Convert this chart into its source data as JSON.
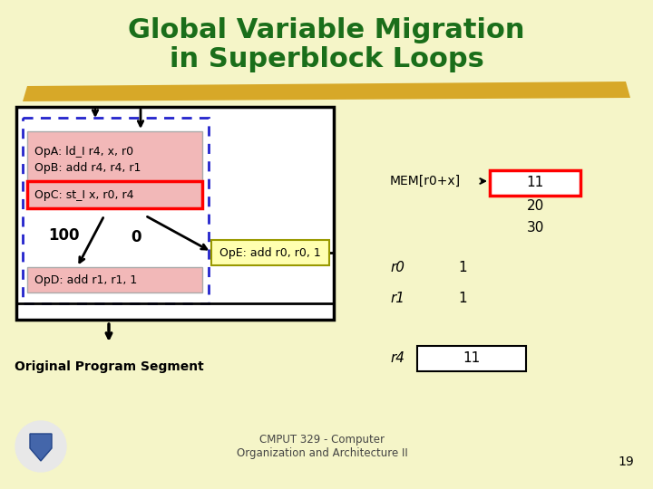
{
  "title_line1": "Global Variable Migration",
  "title_line2": "in Superblock Loops",
  "title_color": "#1a6e1a",
  "bg_color": "#f5f5c8",
  "footer_text": "CMPUT 329 - Computer\nOrganization and Architecture II",
  "page_number": "19",
  "op_a": "OpA: ld_I r4, x, r0",
  "op_b": "OpB: add r4, r4, r1",
  "op_c": "OpC: st_I x, r0, r4",
  "op_d": "OpD: add r1, r1, 1",
  "op_e": "OpE: add r0, r0, 1",
  "label_100": "100",
  "label_0": "0",
  "mem_label": "MEM[r0+x]",
  "mem_value": "11",
  "mem_values_extra": [
    "20",
    "30"
  ],
  "r0_label": "r0",
  "r0_value": "1",
  "r1_label": "r1",
  "r1_value": "1",
  "r4_label": "r4",
  "r4_value": "11",
  "orig_label": "Original Program Segment"
}
